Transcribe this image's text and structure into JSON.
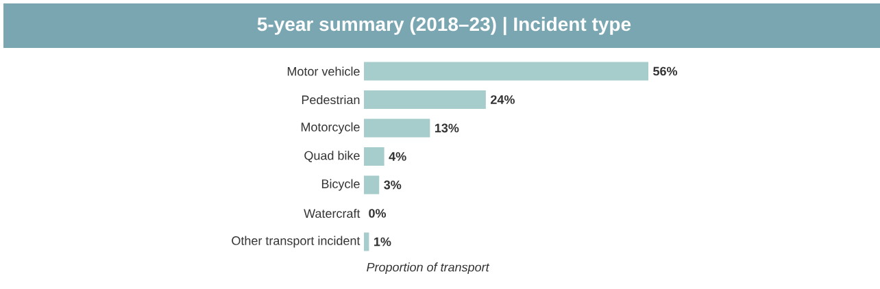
{
  "chart_data": {
    "type": "bar",
    "orientation": "horizontal",
    "title": "5-year summary (2018–23) | Incident type",
    "xlabel": "Proportion of transport",
    "categories": [
      "Motor vehicle",
      "Pedestrian",
      "Motorcycle",
      "Quad bike",
      "Bicycle",
      "Watercraft",
      "Other transport incident"
    ],
    "values": [
      56,
      24,
      13,
      4,
      3,
      0,
      1
    ],
    "value_labels": [
      "56%",
      "24%",
      "13%",
      "4%",
      "3%",
      "0%",
      "1%"
    ],
    "color": "#a6cdcc"
  }
}
